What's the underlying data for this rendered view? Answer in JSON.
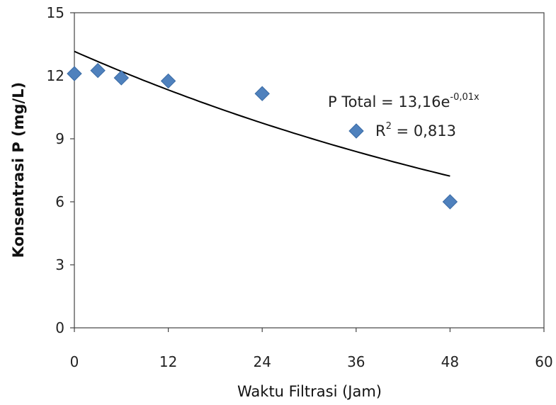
{
  "chart_data": {
    "type": "scatter",
    "xlabel": "Waktu Filtrasi (Jam)",
    "ylabel": "Konsentrasi P (mg/L)",
    "xlim": [
      0,
      60
    ],
    "ylim": [
      0,
      15
    ],
    "xticks": [
      "0",
      "12",
      "24",
      "36",
      "48",
      "60"
    ],
    "yticks": [
      "0",
      "3",
      "6",
      "9",
      "12",
      "15"
    ],
    "grid": false,
    "legend": "none",
    "marker_color": "#4F81BD",
    "series": [
      {
        "x": [
          0,
          3,
          6,
          12,
          24,
          48
        ],
        "y": [
          12.1,
          12.25,
          11.9,
          11.75,
          11.15,
          6.0
        ]
      }
    ],
    "trendline": {
      "type": "exponential",
      "a": 13.16,
      "b": -0.0125,
      "x_range": [
        0,
        48
      ]
    },
    "annotations": {
      "equation_main": "P Total = 13,16e",
      "equation_exp": "-0,01x",
      "r2_label": "R",
      "r2_sup": "2",
      "r2_value": " = 0,813"
    }
  }
}
